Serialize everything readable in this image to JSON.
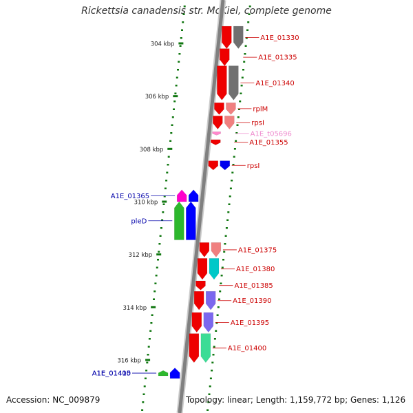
{
  "title": "Rickettsia canadensis str. McKiel, complete genome",
  "accession": "Accession: NC_009879",
  "topology": "Topology: linear; Length: 1,159,772 bp; Genes: 1,126",
  "colors": {
    "forward_label": "#cc0000",
    "reverse_label": "#0000aa",
    "trna_label": "#ee88cc",
    "axis": "#888888",
    "tick": "#117711"
  },
  "ticks": [
    {
      "kbp": 304,
      "label": "304 kbp"
    },
    {
      "kbp": 306,
      "label": "306 kbp"
    },
    {
      "kbp": 308,
      "label": "308 kbp"
    },
    {
      "kbp": 310,
      "label": "310 kbp"
    },
    {
      "kbp": 312,
      "label": "312 kbp"
    },
    {
      "kbp": 314,
      "label": "314 kbp"
    },
    {
      "kbp": 316,
      "label": "316 kbp"
    }
  ],
  "genes": [
    {
      "name": "A1E_01330",
      "strand": "+",
      "start_kbp": 303.35,
      "end_kbp": 304.2,
      "cog_color": "#707070"
    },
    {
      "name": "A1E_01335",
      "strand": "+",
      "start_kbp": 304.2,
      "end_kbp": 304.85,
      "cog_color": null
    },
    {
      "name": "A1E_01340",
      "strand": "+",
      "start_kbp": 304.85,
      "end_kbp": 306.15,
      "cog_color": "#707070"
    },
    {
      "name": "rplM",
      "strand": "+",
      "start_kbp": 306.25,
      "end_kbp": 306.7,
      "cog_color": "#f08080"
    },
    {
      "name": "rpsI",
      "strand": "+",
      "start_kbp": 306.75,
      "end_kbp": 307.25,
      "cog_color": "#f08080"
    },
    {
      "name": "A1E_t05696",
      "strand": "+",
      "start_kbp": 307.35,
      "end_kbp": 307.48,
      "cog_color": null,
      "trna": true
    },
    {
      "name": "A1E_01355",
      "strand": "+",
      "start_kbp": 307.65,
      "end_kbp": 307.85,
      "cog_color": null
    },
    {
      "name": "rpsI",
      "strand": "+",
      "start_kbp": 308.45,
      "end_kbp": 308.8,
      "cog_color": "#0000ee"
    },
    {
      "name": "A1E_01365",
      "strand": "-",
      "start_kbp": 309.55,
      "end_kbp": 310.0,
      "cog_color": "#ff00cc"
    },
    {
      "name": "pleD",
      "strand": "-",
      "start_kbp": 310.0,
      "end_kbp": 311.45,
      "cog_color": "#2db82d"
    },
    {
      "name": "A1E_01375",
      "strand": "+",
      "start_kbp": 311.55,
      "end_kbp": 312.1,
      "cog_color": "#f08080"
    },
    {
      "name": "A1E_01380",
      "strand": "+",
      "start_kbp": 312.15,
      "end_kbp": 312.95,
      "cog_color": "#00c8c8"
    },
    {
      "name": "A1E_01385",
      "strand": "+",
      "start_kbp": 313.0,
      "end_kbp": 313.35,
      "cog_color": null
    },
    {
      "name": "A1E_01390",
      "strand": "+",
      "start_kbp": 313.4,
      "end_kbp": 314.1,
      "cog_color": "#7b68ee"
    },
    {
      "name": "A1E_01395",
      "strand": "+",
      "start_kbp": 314.2,
      "end_kbp": 314.95,
      "cog_color": "#7b68ee"
    },
    {
      "name": "A1E_01400",
      "strand": "+",
      "start_kbp": 315.0,
      "end_kbp": 316.1,
      "cog_color": "#3cdc96"
    },
    {
      "name": "A1E_01405",
      "strand": "-",
      "start_kbp": 316.4,
      "end_kbp": 316.6,
      "cog_color": "#2db82d"
    },
    {
      "name": "A1E_01410",
      "strand": "-",
      "start_kbp": 316.3,
      "end_kbp": 316.7,
      "cog_color": null
    }
  ]
}
